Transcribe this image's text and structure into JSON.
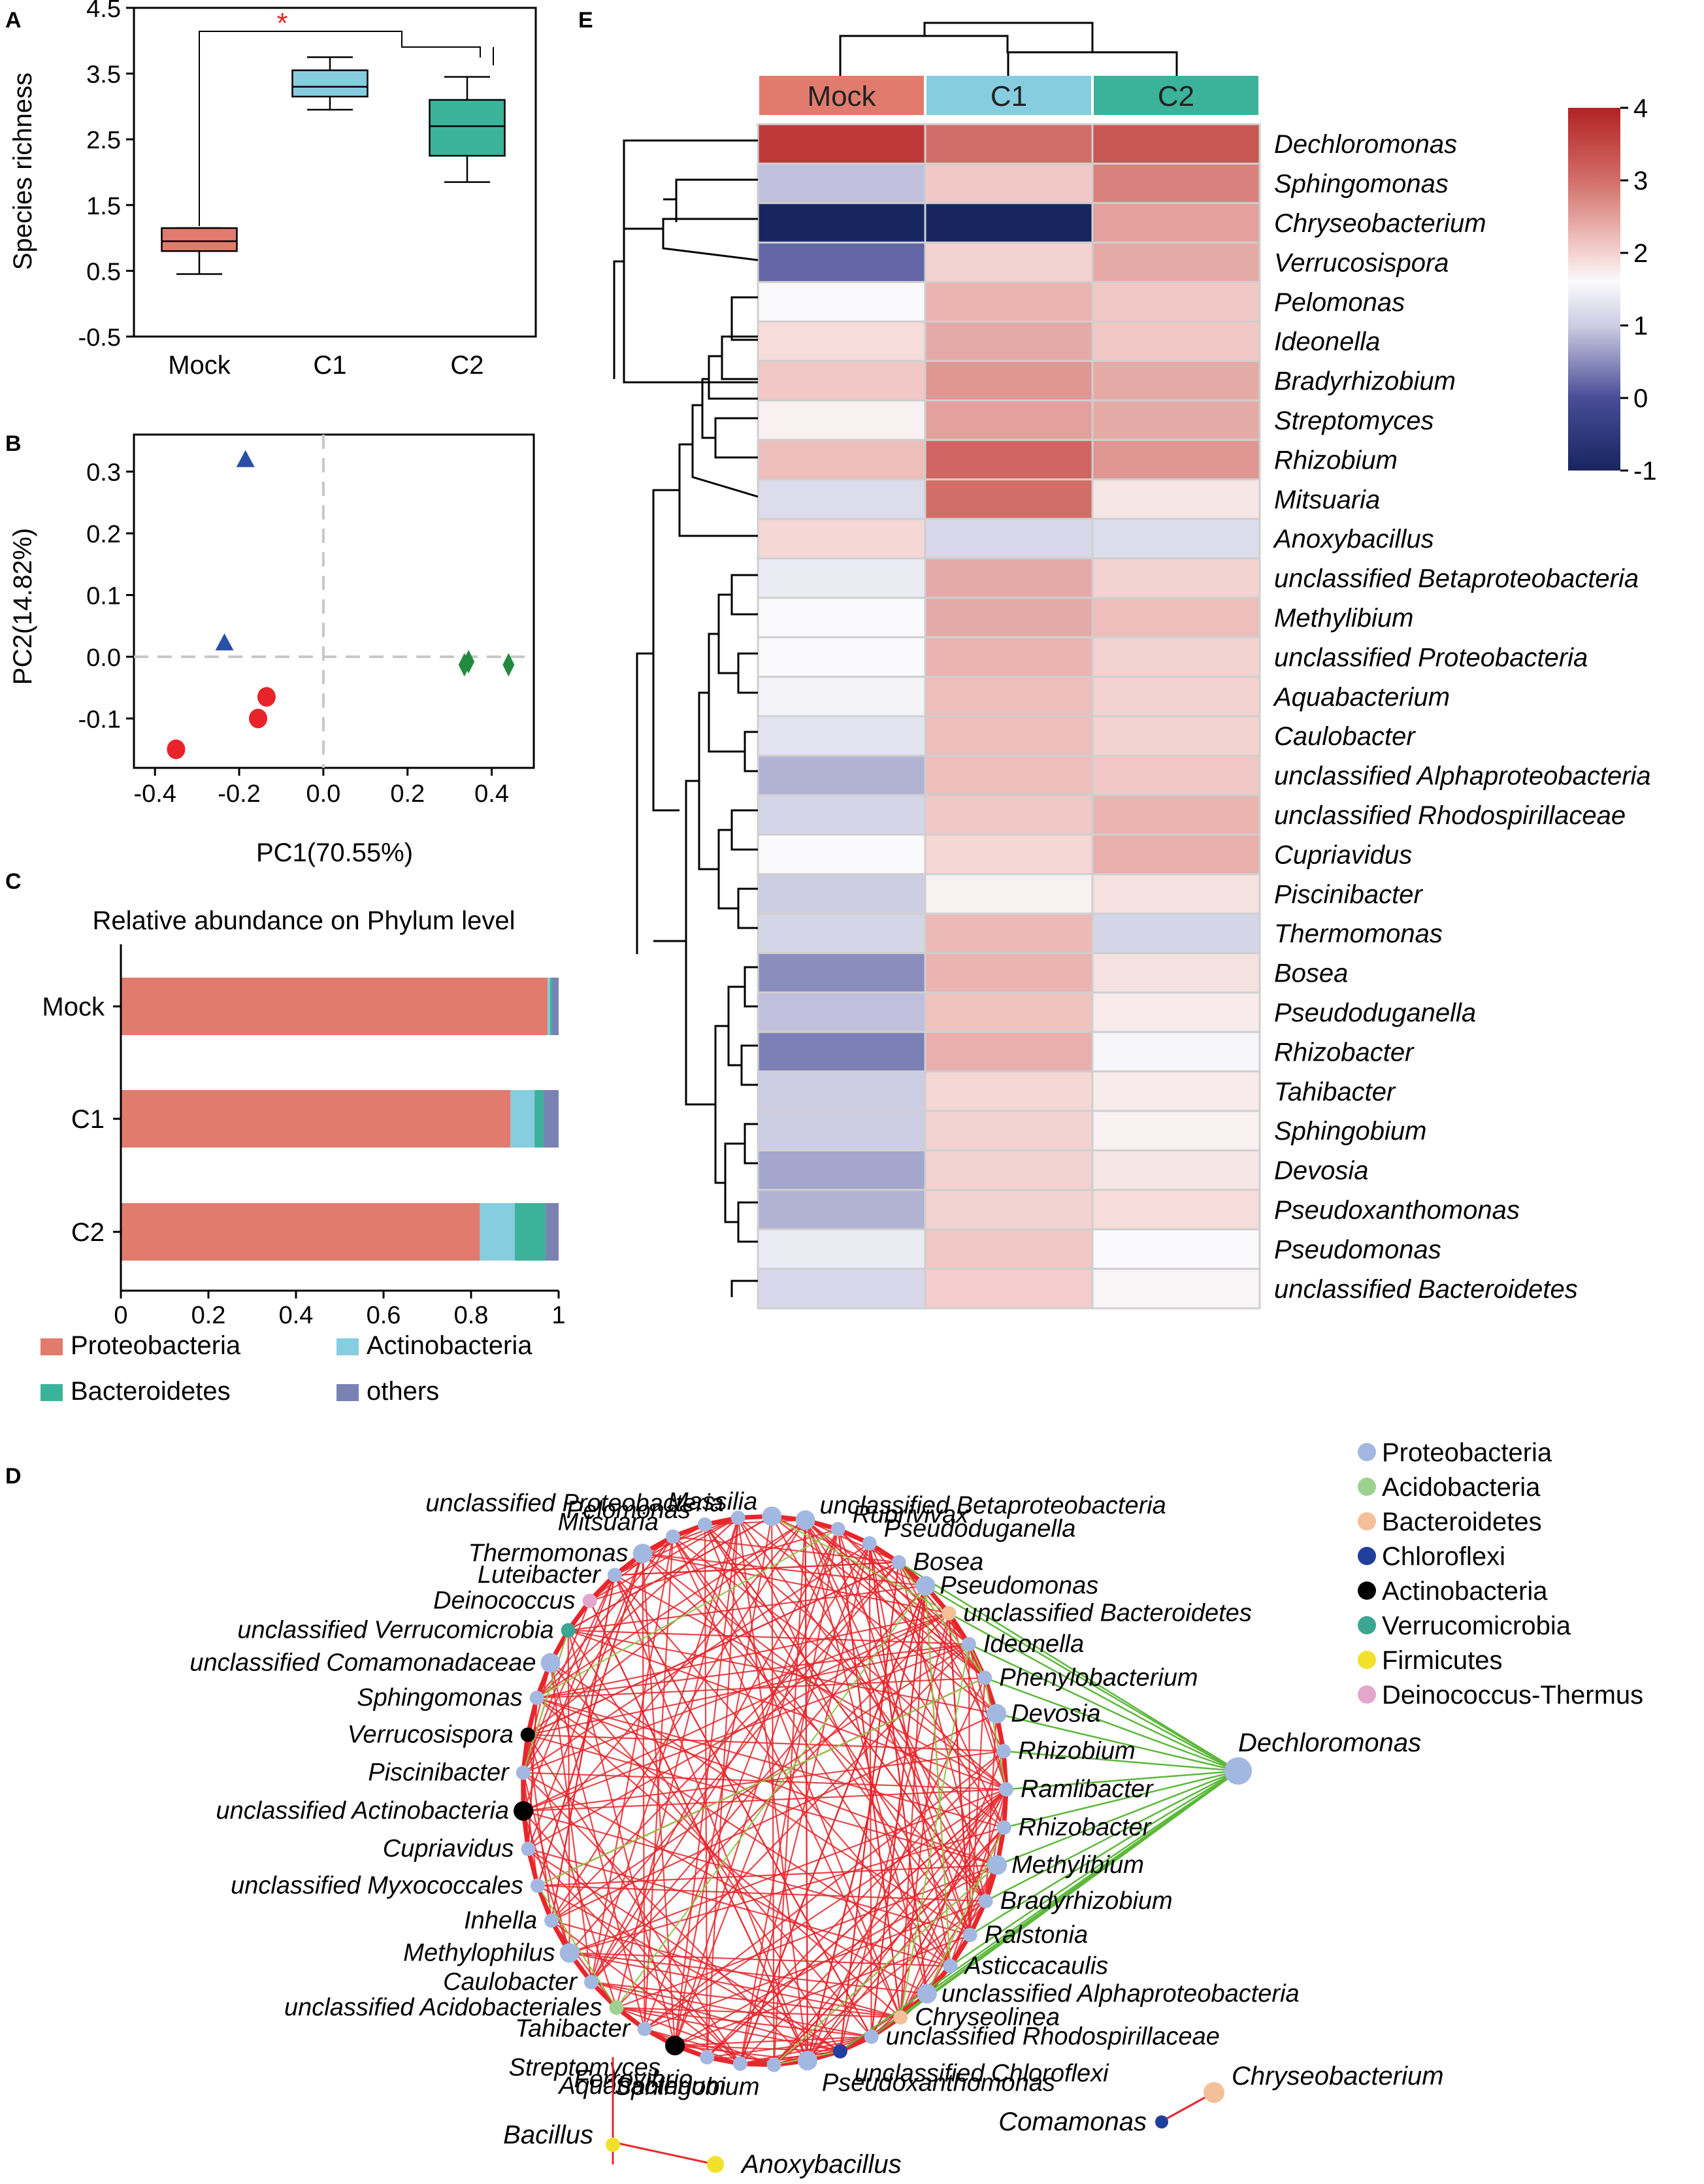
{
  "panel_letters": {
    "a": "A",
    "b": "B",
    "c": "C",
    "d": "D",
    "e": "E"
  },
  "chart_data": [
    {
      "id": "A",
      "type": "box",
      "ylabel": "Species richness",
      "ylim": [
        -0.5,
        4.5
      ],
      "yticks": [
        -0.5,
        0.5,
        1.5,
        2.5,
        3.5,
        4.5
      ],
      "ytick_labels": [
        "-0.5",
        "0.5",
        "1.5",
        "2.5",
        "3.5",
        "4.5"
      ],
      "categories": [
        "Mock",
        "C1",
        "C2"
      ],
      "colors": [
        "#e07b6e",
        "#86cde0",
        "#3bb39b"
      ],
      "boxes": [
        {
          "name": "Mock",
          "min": 0.45,
          "q1": 0.8,
          "median": 0.95,
          "q3": 1.15,
          "max": 1.15
        },
        {
          "name": "C1",
          "min": 2.95,
          "q1": 3.15,
          "median": 3.3,
          "q3": 3.55,
          "max": 3.75
        },
        {
          "name": "C2",
          "min": 1.85,
          "q1": 2.25,
          "median": 2.7,
          "q3": 3.1,
          "max": 3.45
        }
      ],
      "significance": "*"
    },
    {
      "id": "B",
      "type": "scatter",
      "xlabel": "PC1(70.55%)",
      "ylabel": "PC2(14.82%)",
      "xlim": [
        -0.45,
        0.5
      ],
      "ylim": [
        -0.18,
        0.36
      ],
      "xticks": [
        -0.4,
        -0.2,
        0.0,
        0.2,
        0.4
      ],
      "xtick_labels": [
        "-0.4",
        "-0.2",
        "0.0",
        "0.2",
        "0.4"
      ],
      "yticks": [
        -0.1,
        0.0,
        0.1,
        0.2,
        0.3
      ],
      "ytick_labels": [
        "-0.1",
        "0.0",
        "0.1",
        "0.2",
        "0.3"
      ],
      "series": [
        {
          "name": "Mock",
          "marker": "circle",
          "color": "#e8242a",
          "points": [
            [
              -0.35,
              -0.15
            ],
            [
              -0.155,
              -0.1
            ],
            [
              -0.135,
              -0.065
            ]
          ]
        },
        {
          "name": "C1",
          "marker": "triangle",
          "color": "#2a4fa6",
          "points": [
            [
              -0.185,
              0.32
            ],
            [
              -0.235,
              0.023
            ]
          ]
        },
        {
          "name": "C2",
          "marker": "diamond",
          "color": "#218a3e",
          "points": [
            [
              0.335,
              -0.013
            ],
            [
              0.345,
              -0.008
            ],
            [
              0.44,
              -0.013
            ]
          ]
        }
      ]
    },
    {
      "id": "C",
      "type": "bar",
      "orientation": "horizontal",
      "stacked": true,
      "title": "Relative abundance on Phylum level",
      "categories": [
        "Mock",
        "C1",
        "C2"
      ],
      "xlim": [
        0,
        1
      ],
      "xticks": [
        0,
        0.2,
        0.4,
        0.6,
        0.8,
        1
      ],
      "xtick_labels": [
        "0",
        "0.2",
        "0.4",
        "0.6",
        "0.8",
        "1"
      ],
      "series": [
        {
          "name": "Proteobacteria",
          "color": "#e07b6e",
          "values": [
            0.975,
            0.89,
            0.82
          ]
        },
        {
          "name": "Actinobacteria",
          "color": "#86cde0",
          "values": [
            0.005,
            0.055,
            0.08
          ]
        },
        {
          "name": "Bacteroidetes",
          "color": "#3bb39b",
          "values": [
            0.005,
            0.02,
            0.07
          ]
        },
        {
          "name": "others",
          "color": "#7a82b3",
          "values": [
            0.015,
            0.035,
            0.03
          ]
        }
      ],
      "legend": [
        "Proteobacteria",
        "Actinobacteria",
        "Bacteroidetes",
        "others"
      ]
    },
    {
      "id": "E",
      "type": "heatmap",
      "columns": [
        "Mock",
        "C1",
        "C2"
      ],
      "column_colors": [
        "#e07b6e",
        "#86cde0",
        "#3bb39b"
      ],
      "rows": [
        "Dechloromonas",
        "Sphingomonas",
        "Chryseobacterium",
        "Verrucosispora",
        "Pelomonas",
        "Ideonella",
        "Bradyrhizobium",
        "Streptomyces",
        "Rhizobium",
        "Mitsuaria",
        "Anoxybacillus",
        "unclassified Betaproteobacteria",
        "Methylibium",
        "unclassified Proteobacteria",
        "Aquabacterium",
        "Caulobacter",
        "unclassified Alphaproteobacteria",
        "unclassified Rhodospirillaceae",
        "Cupriavidus",
        "Piscinibacter",
        "Thermomonas",
        "Bosea",
        "Pseudoduganella",
        "Rhizobacter",
        "Tahibacter",
        "Sphingobium",
        "Devosia",
        "Pseudoxanthomonas",
        "Pseudomonas",
        "unclassified Bacteroidetes"
      ],
      "values": [
        [
          3.7,
          3.0,
          3.3
        ],
        [
          0.9,
          2.1,
          2.8
        ],
        [
          -1.0,
          -1.0,
          2.5
        ],
        [
          0.2,
          2.0,
          2.4
        ],
        [
          1.6,
          2.3,
          2.1
        ],
        [
          1.9,
          2.4,
          2.1
        ],
        [
          2.1,
          2.6,
          2.4
        ],
        [
          1.7,
          2.5,
          2.4
        ],
        [
          2.2,
          3.1,
          2.6
        ],
        [
          1.2,
          3.0,
          1.8
        ],
        [
          1.95,
          1.15,
          1.2
        ],
        [
          1.4,
          2.4,
          2.0
        ],
        [
          1.6,
          2.4,
          2.2
        ],
        [
          1.6,
          2.3,
          2.0
        ],
        [
          1.5,
          2.2,
          2.0
        ],
        [
          1.3,
          2.2,
          2.0
        ],
        [
          0.8,
          2.2,
          2.1
        ],
        [
          1.1,
          2.1,
          2.3
        ],
        [
          1.6,
          1.95,
          2.35
        ],
        [
          1.0,
          1.7,
          1.85
        ],
        [
          1.1,
          2.25,
          1.1
        ],
        [
          0.5,
          2.3,
          1.85
        ],
        [
          0.9,
          2.15,
          1.75
        ],
        [
          0.4,
          2.35,
          1.55
        ],
        [
          1.0,
          1.95,
          1.75
        ],
        [
          1.0,
          2.0,
          1.7
        ],
        [
          0.7,
          2.0,
          1.8
        ],
        [
          0.8,
          2.0,
          1.9
        ],
        [
          1.4,
          2.1,
          1.6
        ],
        [
          1.15,
          2.05,
          1.65
        ]
      ],
      "vmin": -1,
      "vmax": 4,
      "colorbar_ticks": [
        "4",
        "3",
        "2",
        "1",
        "0",
        "-1"
      ]
    }
  ],
  "network": {
    "legend": [
      {
        "name": "Proteobacteria",
        "color": "#a3b8e0"
      },
      {
        "name": "Acidobacteria",
        "color": "#9ed18f"
      },
      {
        "name": "Bacteroidetes",
        "color": "#f4c09a"
      },
      {
        "name": "Chloroflexi",
        "color": "#213f9c"
      },
      {
        "name": "Actinobacteria",
        "color": "#000000"
      },
      {
        "name": "Verrucomicrobia",
        "color": "#3aa693"
      },
      {
        "name": "Firmicutes",
        "color": "#f2e12a"
      },
      {
        "name": "Deinococcus-Thermus",
        "color": "#e4a6cc"
      }
    ],
    "ring_labels": [
      "unclassified Betaproteobacteria",
      "Rubrivivax",
      "Pseudoduganella",
      "Bosea",
      "Pseudomonas",
      "unclassified Bacteroidetes",
      "Ideonella",
      "Phenylobacterium",
      "Devosia",
      "Rhizobium",
      "Ramlibacter",
      "Rhizobacter",
      "Methylibium",
      "Bradyrhizobium",
      "Ralstonia",
      "Asticcacaulis",
      "unclassified Alphaproteobacteria",
      "Chryseolinea",
      "unclassified Rhodospirillaceae",
      "unclassified Chloroflexi",
      "Pseudoxanthomonas",
      "Sphingobium",
      "Aquabacterium",
      "Ferrovibrio",
      "Streptomyces",
      "Tahibacter",
      "unclassified Acidobacteriales",
      "Caulobacter",
      "Methylophilus",
      "Inhella",
      "unclassified Myxococcales",
      "Cupriavidus",
      "unclassified Actinobacteria",
      "Piscinibacter",
      "Verrucosispora",
      "Sphingomonas",
      "unclassified Comamonadaceae",
      "unclassified  Verrucomicrobia",
      "Deinococcus",
      "Luteibacter",
      "Thermomonas",
      "Mitsuaria",
      "Pelomonas",
      "unclassified Proteobacteria",
      "Massilia"
    ],
    "hub": "Dechloromonas",
    "outliers": [
      "Bacillus",
      "Anoxybacillus",
      "Chryseobacterium",
      "Comamonas"
    ]
  }
}
